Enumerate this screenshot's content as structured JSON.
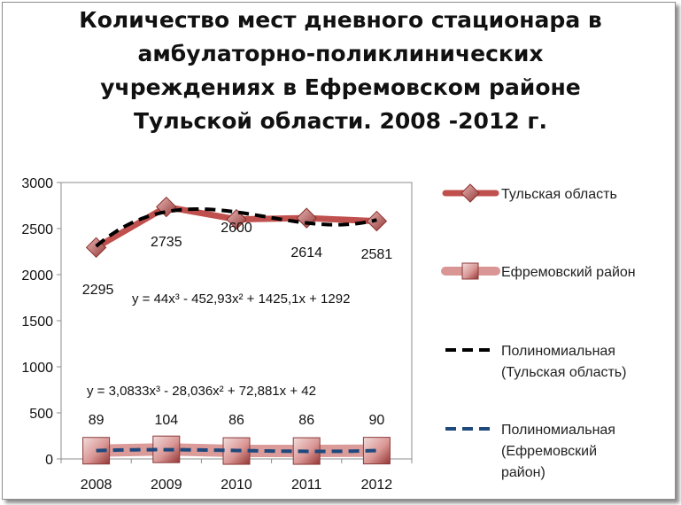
{
  "chart_data": {
    "type": "line",
    "title_lines": [
      "Количество мест  дневного стационара в",
      "амбулаторно-поликлинических",
      "учреждениях в Ефремовском районе",
      "Тульской области. 2008 -2012 г."
    ],
    "categories": [
      "2008",
      "2009",
      "2010",
      "2011",
      "2012"
    ],
    "ylim": [
      0,
      3000
    ],
    "yticks": [
      "0",
      "500",
      "1000",
      "1500",
      "2000",
      "2500",
      "3000"
    ],
    "legend_position": "right",
    "series": [
      {
        "name": "Тульская область",
        "values": [
          2295,
          2735,
          2600,
          2614,
          2581
        ],
        "labels": [
          "2295",
          "2735",
          "2600",
          "2614",
          "2581"
        ],
        "color": "#C0504D",
        "marker": "diamond"
      },
      {
        "name": "Ефремовский район",
        "values": [
          89,
          104,
          86,
          86,
          90
        ],
        "labels": [
          "89",
          "104",
          "86",
          "86",
          "90"
        ],
        "color": "#D99694",
        "marker": "square"
      }
    ],
    "trendlines": [
      {
        "name": "Полиномиальная (Тульская область)",
        "legend_lines": [
          "Полиномиальная",
          "(Тульская область)"
        ],
        "equation": "y = 44x³ - 452,93x² + 1425,1x + 1292",
        "coefficients": [
          44,
          -452.93,
          1425.1,
          1292
        ],
        "color": "#000000"
      },
      {
        "name": "Полиномиальная (Ефремовский район)",
        "legend_lines": [
          "Полиномиальная",
          "(Ефремовский",
          "район)"
        ],
        "equation": "y = 3,0833x³ - 28,036x² + 72,881x + 42",
        "coefficients": [
          3.0833,
          -28.036,
          72.881,
          42
        ],
        "color": "#1F497D"
      }
    ]
  }
}
